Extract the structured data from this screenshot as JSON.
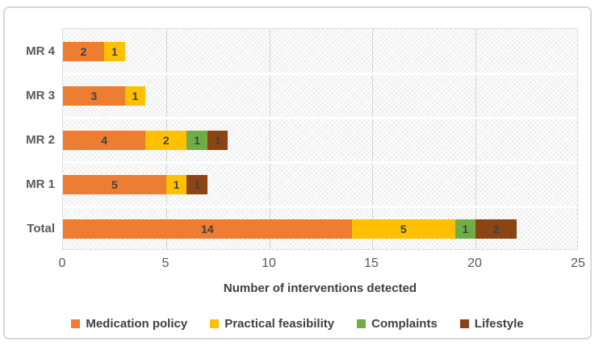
{
  "chart_data": {
    "type": "bar",
    "orientation": "horizontal-stacked",
    "categories": [
      "MR 4",
      "MR 3",
      "MR 2",
      "MR 1",
      "Total"
    ],
    "series": [
      {
        "name": "Medication policy",
        "color": "#ED7D31",
        "values": [
          2,
          3,
          4,
          5,
          14
        ]
      },
      {
        "name": "Practical feasibility",
        "color": "#FFC000",
        "values": [
          1,
          1,
          2,
          1,
          5
        ]
      },
      {
        "name": "Complaints",
        "color": "#70AD47",
        "values": [
          0,
          0,
          1,
          0,
          1
        ]
      },
      {
        "name": "Lifestyle",
        "color": "#8B4513",
        "values": [
          0,
          0,
          1,
          1,
          2
        ]
      }
    ],
    "xlabel": "Number of interventions detected",
    "xlim": [
      0,
      25
    ],
    "xticks": [
      0,
      5,
      10,
      15,
      20,
      25
    ],
    "grid": true,
    "legend_position": "bottom",
    "show_data_labels": true,
    "plot_background": "hatched",
    "gridline_color": "#d4d4d4",
    "text_color": "#595959",
    "label_color": "#404040"
  }
}
